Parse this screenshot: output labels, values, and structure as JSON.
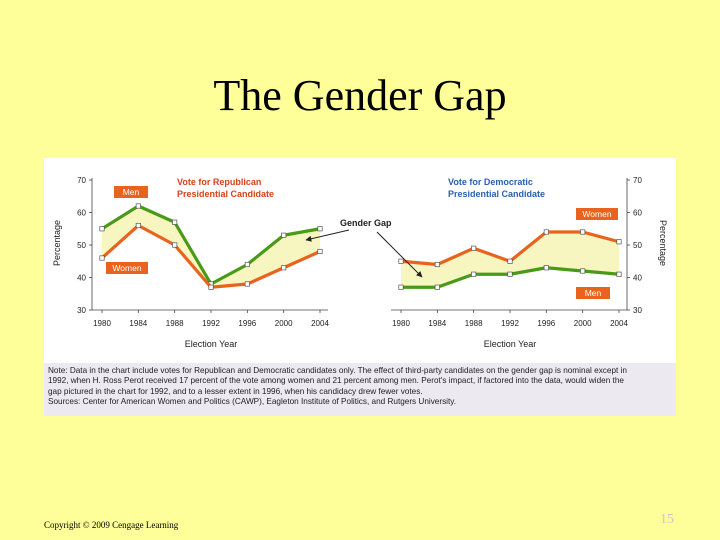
{
  "slide": {
    "title": "The Gender Gap",
    "copyright": "Copyright © 2009 Cengage Learning",
    "slide_number": "15"
  },
  "colors": {
    "background": "#ffff99",
    "men_line": "#4a9a1a",
    "women_line": "#e8631e",
    "gap_fill": "#f7f5c0",
    "panel_title_rep": "#d6421a",
    "panel_title_dem": "#2a5fb0",
    "label_box": "#e8631e"
  },
  "chart_data": {
    "type": "line",
    "x": [
      "1980",
      "1984",
      "1988",
      "1992",
      "1996",
      "2000",
      "2004"
    ],
    "ylim": [
      30,
      70
    ],
    "yticks": [
      "30",
      "40",
      "50",
      "60",
      "70"
    ],
    "xlabel": "Election Year",
    "ylabel": "Percentage",
    "annotation": "Gender Gap",
    "panels": [
      {
        "title_line1": "Vote for Republican",
        "title_line2": "Presidential Candidate",
        "series": [
          {
            "name": "Men",
            "values": [
              55,
              62,
              57,
              38,
              44,
              53,
              55
            ]
          },
          {
            "name": "Women",
            "values": [
              46,
              56,
              50,
              37,
              38,
              43,
              48
            ]
          }
        ]
      },
      {
        "title_line1": "Vote for Democratic",
        "title_line2": "Presidential Candidate",
        "series": [
          {
            "name": "Women",
            "values": [
              45,
              44,
              49,
              45,
              54,
              54,
              51
            ]
          },
          {
            "name": "Men",
            "values": [
              37,
              37,
              41,
              41,
              43,
              42,
              41
            ]
          }
        ]
      }
    ]
  },
  "note": {
    "lines": [
      "Note: Data in the chart include votes for Republican and Democratic candidates only. The effect of third-party candidates on the gender gap is nominal except in",
      "1992, when H. Ross Perot received 17 percent of the vote among women and 21 percent among men. Perot's impact, if factored into the data, would widen the",
      "gap pictured in the chart for 1992, and to a lesser extent in 1996, when his candidacy drew fewer votes.",
      "Sources: Center for American Women and Politics (CAWP), Eagleton Institute of Politics, and Rutgers University."
    ]
  }
}
